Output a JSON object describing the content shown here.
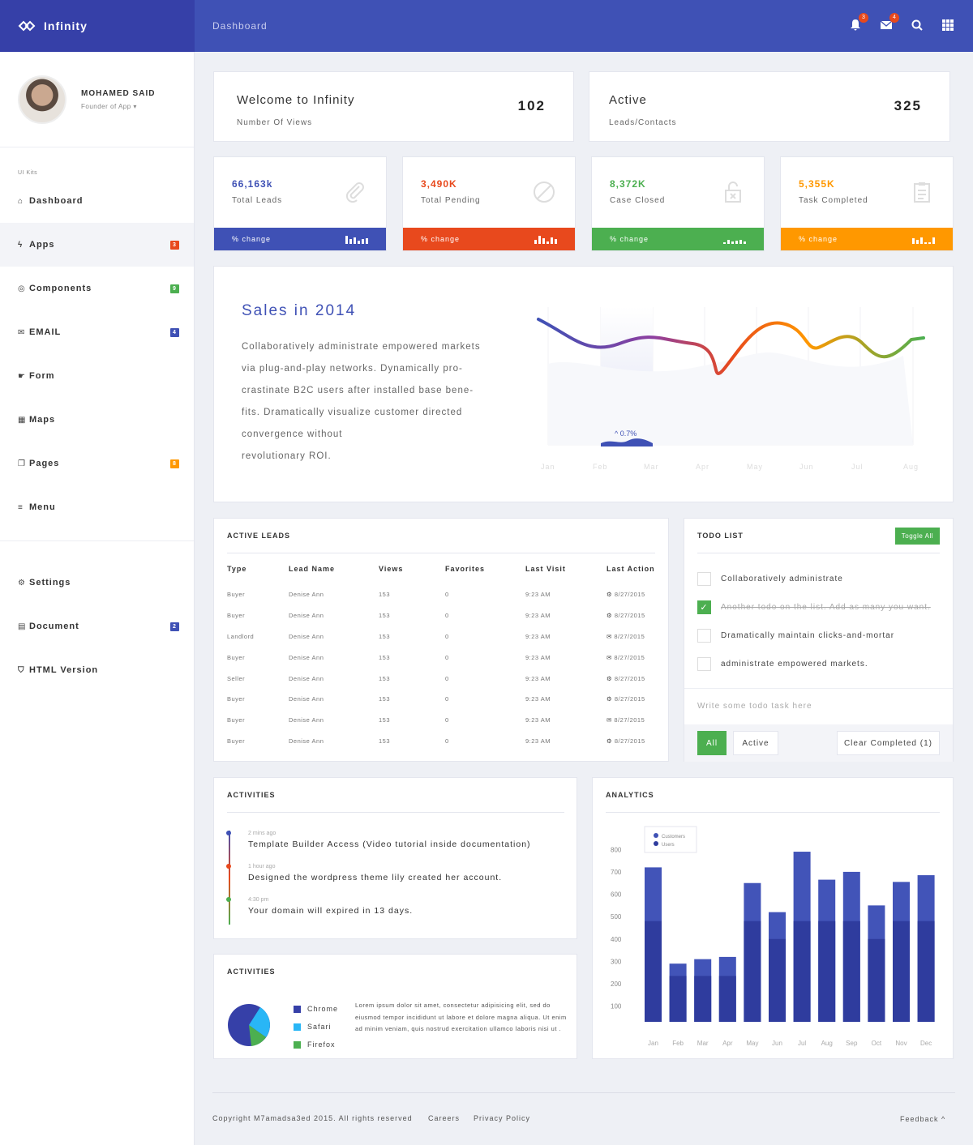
{
  "brand": {
    "name": "Infinity"
  },
  "topbar": {
    "title": "Dashboard",
    "notifications_badge": "3",
    "messages_badge": "4",
    "icons": [
      "bell-icon",
      "envelope-icon",
      "search-icon",
      "grid-icon"
    ]
  },
  "profile": {
    "name": "MOHAMED SAID",
    "role": "Founder of App ▾"
  },
  "sidebar": {
    "section_label": "UI Kits",
    "items": [
      {
        "label": "Dashboard",
        "icon": "home-icon",
        "badge": ""
      },
      {
        "label": "Apps",
        "icon": "bolt-icon",
        "badge": "3",
        "badge_color": "#e8491d"
      },
      {
        "label": "Components",
        "icon": "circle-icon",
        "badge": "9",
        "badge_color": "#4caf50"
      },
      {
        "label": "EMAIL",
        "icon": "envelope-icon",
        "badge": "4",
        "badge_color": "#3f51b5"
      },
      {
        "label": "Form",
        "icon": "hand-icon",
        "badge": ""
      },
      {
        "label": "Maps",
        "icon": "map-icon",
        "badge": ""
      },
      {
        "label": "Pages",
        "icon": "copy-icon",
        "badge": "8",
        "badge_color": "#ff9800"
      },
      {
        "label": "Menu",
        "icon": "list-icon",
        "badge": ""
      }
    ],
    "bottom_items": [
      {
        "label": "Settings",
        "icon": "gear-icon",
        "badge": ""
      },
      {
        "label": "Document",
        "icon": "document-icon",
        "badge": "2",
        "badge_color": "#3f51b5"
      },
      {
        "label": "HTML Version",
        "icon": "html5-icon",
        "badge": ""
      }
    ]
  },
  "welcome": {
    "title": "Welcome to Infinity",
    "subtitle": "Number Of Views",
    "value": "102"
  },
  "active": {
    "title": "Active",
    "subtitle": "Leads/Contacts",
    "value": "325"
  },
  "stats": [
    {
      "value": "66,163k",
      "label": "Total Leads",
      "bar_label": "% change",
      "color": "#3f51b5",
      "icon": "paperclip-icon"
    },
    {
      "value": "3,490K",
      "label": "Total Pending",
      "bar_label": "% change",
      "color": "#e8491d",
      "icon": "ban-icon"
    },
    {
      "value": "8,372K",
      "label": "Case Closed",
      "bar_label": "% change",
      "color": "#4caf50",
      "icon": "unlock-icon"
    },
    {
      "value": "5,355K",
      "label": "Task Completed",
      "bar_label": "% change",
      "color": "#ff9800",
      "icon": "clipboard-icon"
    }
  ],
  "sales": {
    "title": "Sales in 2014",
    "text": "Collaboratively administrate empowered markets via plug-and-play networks. Dynamically pro-crastinate B2C users after installed base bene-fits. Dramatically visualize customer directed convergence without revolutionary ROI.",
    "lines": [
      "Collaboratively administrate empowered markets",
      "via plug-and-play networks. Dynamically pro-",
      "crastinate B2C users after installed base bene-",
      "fits. Dramatically visualize customer directed",
      "convergence without",
      "revolutionary ROI."
    ],
    "highlight_label": "^ 0.7%",
    "months": [
      "Jan",
      "Feb",
      "Mar",
      "Apr",
      "May",
      "Jun",
      "Jul",
      "Aug"
    ]
  },
  "leads": {
    "title": "ACTIVE LEADS",
    "columns": [
      "Type",
      "Lead Name",
      "Views",
      "Favorites",
      "Last Visit",
      "Last Action"
    ],
    "rows": [
      {
        "type": "Buyer",
        "name": "Denise Ann",
        "views": "153",
        "favorites": "0",
        "visit": "9:23 AM",
        "action": "8/27/2015",
        "action_icon": "gear-icon"
      },
      {
        "type": "Buyer",
        "name": "Denise Ann",
        "views": "153",
        "favorites": "0",
        "visit": "9:23 AM",
        "action": "8/27/2015",
        "action_icon": "gear-icon"
      },
      {
        "type": "Landlord",
        "name": "Denise Ann",
        "views": "153",
        "favorites": "0",
        "visit": "9:23 AM",
        "action": "8/27/2015",
        "action_icon": "envelope-icon"
      },
      {
        "type": "Buyer",
        "name": "Denise Ann",
        "views": "153",
        "favorites": "0",
        "visit": "9:23 AM",
        "action": "8/27/2015",
        "action_icon": "envelope-icon"
      },
      {
        "type": "Seller",
        "name": "Denise Ann",
        "views": "153",
        "favorites": "0",
        "visit": "9:23 AM",
        "action": "8/27/2015",
        "action_icon": "gear-icon"
      },
      {
        "type": "Buyer",
        "name": "Denise Ann",
        "views": "153",
        "favorites": "0",
        "visit": "9:23 AM",
        "action": "8/27/2015",
        "action_icon": "gear-icon"
      },
      {
        "type": "Buyer",
        "name": "Denise Ann",
        "views": "153",
        "favorites": "0",
        "visit": "9:23 AM",
        "action": "8/27/2015",
        "action_icon": "envelope-icon"
      },
      {
        "type": "Buyer",
        "name": "Denise Ann",
        "views": "153",
        "favorites": "0",
        "visit": "9:23 AM",
        "action": "8/27/2015",
        "action_icon": "gear-icon"
      }
    ]
  },
  "todo": {
    "title": "TODO LIST",
    "toggle_all": "Toggle All",
    "items": [
      {
        "text": "Collaboratively administrate",
        "done": false
      },
      {
        "text": "Another todo on the list. Add as many you want.",
        "done": true
      },
      {
        "text": "Dramatically maintain clicks-and-mortar",
        "done": false
      },
      {
        "text": "administrate empowered markets.",
        "done": false
      }
    ],
    "input_placeholder": "Write some todo task here",
    "filter_all": "All",
    "filter_active": "Active",
    "clear_completed": "Clear Completed (1)"
  },
  "activities": {
    "title": "ACTIVITIES",
    "items": [
      {
        "time": "2 mins ago",
        "text": "Template Builder Access (Video tutorial inside documentation)",
        "color": "#3f51b5"
      },
      {
        "time": "1 hour ago",
        "text": "Designed the wordpress theme lily created her account.",
        "color": "#e8491d"
      },
      {
        "time": "4:30 pm",
        "text": "Your domain will expired in 13 days.",
        "color": "#4caf50"
      }
    ]
  },
  "browsers": {
    "title": "ACTIVITIES",
    "legend": [
      {
        "label": "Chrome",
        "color": "#3640a8"
      },
      {
        "label": "Safari",
        "color": "#29b6f6"
      },
      {
        "label": "Firefox",
        "color": "#4caf50"
      }
    ],
    "description": "Lorem ipsum dolor sit amet, consectetur adipisicing elit, sed do eiusmod tempor incididunt ut labore et dolore magna aliqua. Ut enim ad minim veniam, quis nostrud exercitation ullamco laboris nisi ut ."
  },
  "analytics": {
    "title": "ANALYTICS",
    "legend": [
      "Customers",
      "Users"
    ]
  },
  "chart_data": {
    "type": "bar",
    "categories": [
      "Jan",
      "Feb",
      "Mar",
      "Apr",
      "May",
      "Jun",
      "Jul",
      "Aug",
      "Sep",
      "Oct",
      "Nov",
      "Dec"
    ],
    "series": [
      {
        "name": "Customers",
        "values": [
          720,
          290,
          310,
          320,
          650,
          520,
          790,
          665,
          700,
          550,
          655,
          685
        ],
        "color": "#4254b8"
      },
      {
        "name": "Users",
        "values": [
          480,
          235,
          235,
          235,
          480,
          400,
          480,
          480,
          480,
          400,
          480,
          480
        ],
        "color": "#2f3c9e"
      }
    ],
    "yticks": [
      100,
      200,
      300,
      400,
      500,
      600,
      700,
      800
    ],
    "ylim": [
      30,
      830
    ]
  },
  "footer": {
    "copyright": "Copyright M7amadsa3ed 2015. All rights reserved",
    "links": [
      "Careers",
      "Privacy Policy"
    ],
    "feedback": "Feedback ^"
  }
}
